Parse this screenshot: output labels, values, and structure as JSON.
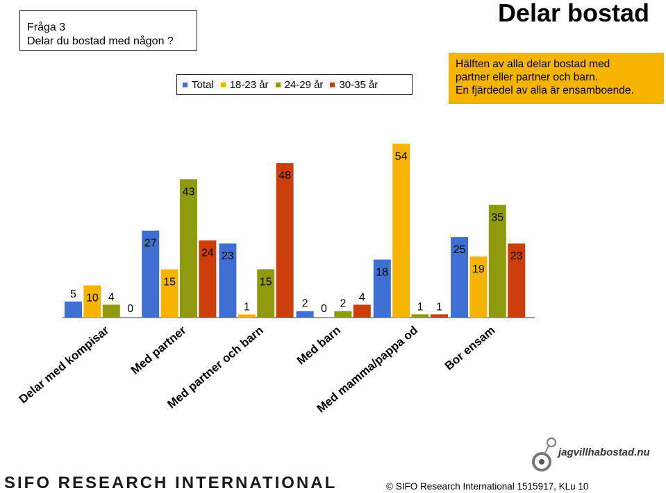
{
  "question": {
    "line1": "Fråga 3",
    "line2": "Delar du bostad med någon ?"
  },
  "title": "Delar bostad",
  "callout": {
    "line1": "Hälften av alla delar bostad med",
    "line2": "partner  eller partner och barn.",
    "line3": "En fjärdedel av alla är ensamboende."
  },
  "footer": {
    "brand": "SIFO RESEARCH INTERNATIONAL",
    "copyright": "©  SIFO Research International 1515917, KLu 10",
    "logo_text": "jagvillhabostad.nu"
  },
  "chart_data": {
    "type": "bar",
    "categories": [
      "Delar med kompisar",
      "Med partner",
      "Med partner och barn",
      "Med barn",
      "Med mamma/pappa od",
      "Bor ensam"
    ],
    "series": [
      {
        "name": "Total",
        "color": "#3f6fd1",
        "values": [
          5,
          27,
          23,
          2,
          18,
          25
        ]
      },
      {
        "name": "18-23 år",
        "color": "#f5b400",
        "values": [
          10,
          15,
          1,
          0,
          54,
          19
        ]
      },
      {
        "name": "24-29 år",
        "color": "#8f9a0c",
        "values": [
          4,
          43,
          15,
          2,
          1,
          35
        ]
      },
      {
        "name": "30-35 år",
        "color": "#cc3f0c",
        "values": [
          0,
          24,
          48,
          4,
          1,
          23
        ]
      }
    ],
    "ylim": [
      0,
      56
    ],
    "grid": false,
    "legend": "top"
  }
}
